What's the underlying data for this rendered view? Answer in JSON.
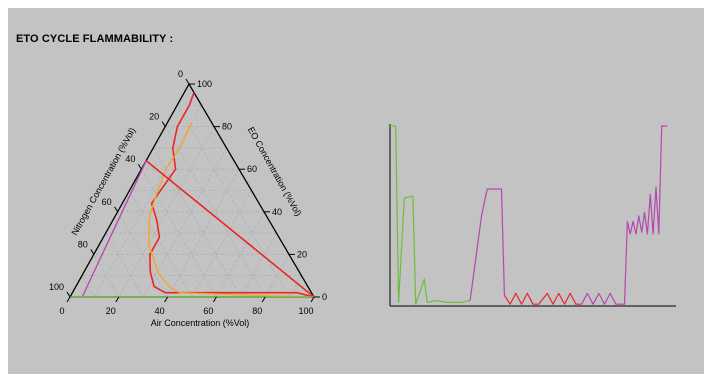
{
  "title": "ETO CYCLE FLAMMABILITY :",
  "colors": {
    "background": "#c3c3c3",
    "grid": "#aaaaaa",
    "red": "#e8262a",
    "orange": "#f5a623",
    "purple": "#b447b0",
    "green": "#6abf3a"
  },
  "chart_data": [
    {
      "type": "ternary",
      "title": "ETO CYCLE FLAMMABILITY :",
      "axes": {
        "bottom": {
          "label": "Air Concentration (%Vol)",
          "ticks": [
            "0",
            "20",
            "40",
            "60",
            "80",
            "100"
          ]
        },
        "right": {
          "label": "EO Concentration (%Vol)",
          "ticks": [
            "0",
            "20",
            "40",
            "60",
            "80",
            "100"
          ]
        },
        "left": {
          "label": "Nitrogen Concentration (%Vol)",
          "ticks": [
            "0",
            "20",
            "40",
            "60",
            "80",
            "100"
          ]
        }
      },
      "grid": true,
      "series": [
        {
          "color": "red",
          "points": [
            [
              4,
              96,
              0
            ],
            [
              5,
              90,
              5
            ],
            [
              5,
              80,
              15
            ],
            [
              8,
              70,
              22
            ],
            [
              14,
              60,
              26
            ],
            [
              13,
              52,
              35
            ],
            [
              12,
              44,
              44
            ],
            [
              18,
              36,
              46
            ],
            [
              23,
              28,
              49
            ],
            [
              23,
              20,
              57
            ],
            [
              27,
              12,
              61
            ],
            [
              32,
              5,
              63
            ],
            [
              38,
              2,
              60
            ],
            [
              52,
              2,
              46
            ],
            [
              72,
              2,
              26
            ],
            [
              92,
              2,
              6
            ],
            [
              100,
              0,
              0
            ]
          ]
        },
        {
          "color": "orange",
          "points": [
            [
              10,
              82,
              8
            ],
            [
              11,
              70,
              19
            ],
            [
              10,
              60,
              30
            ],
            [
              12,
              48,
              40
            ],
            [
              14,
              38,
              48
            ],
            [
              20,
              25,
              55
            ],
            [
              30,
              12,
              58
            ],
            [
              38,
              5,
              57
            ],
            [
              44,
              2,
              54
            ],
            [
              70,
              1,
              29
            ],
            [
              100,
              0,
              0
            ]
          ]
        },
        {
          "color": "red",
          "points": [
            [
              0,
              64,
              36
            ],
            [
              100,
              0,
              0
            ]
          ]
        },
        {
          "color": "purple",
          "points": [
            [
              5,
              0,
              95
            ],
            [
              0,
              64,
              36
            ]
          ]
        },
        {
          "color": "green",
          "points": [
            [
              0,
              0,
              100
            ],
            [
              100,
              0,
              0
            ]
          ]
        }
      ]
    },
    {
      "type": "line",
      "grid": false,
      "series": [
        {
          "color": "green",
          "points": [
            [
              0,
              100
            ],
            [
              2,
              100
            ],
            [
              3,
              2
            ],
            [
              5,
              60
            ],
            [
              8,
              61
            ],
            [
              9,
              1
            ],
            [
              12,
              15
            ],
            [
              13,
              2
            ],
            [
              16,
              3
            ],
            [
              20,
              2
            ],
            [
              25,
              2
            ],
            [
              28,
              3
            ]
          ]
        },
        {
          "color": "purple",
          "points": [
            [
              28,
              3
            ],
            [
              32,
              50
            ],
            [
              34,
              65
            ],
            [
              39,
              65
            ],
            [
              40,
              6
            ]
          ]
        },
        {
          "color": "red",
          "points": [
            [
              40,
              6
            ],
            [
              42,
              1
            ],
            [
              44,
              7
            ],
            [
              46,
              1
            ],
            [
              48,
              7
            ],
            [
              50,
              1
            ],
            [
              52,
              1
            ],
            [
              55,
              7
            ],
            [
              57,
              1
            ],
            [
              59,
              7
            ],
            [
              61,
              1
            ],
            [
              63,
              7
            ],
            [
              65,
              1
            ],
            [
              67,
              1
            ]
          ]
        },
        {
          "color": "purple",
          "points": [
            [
              67,
              1
            ],
            [
              69,
              7
            ],
            [
              71,
              1
            ],
            [
              73,
              7
            ],
            [
              75,
              1
            ],
            [
              77,
              7
            ],
            [
              79,
              1
            ],
            [
              82,
              1
            ],
            [
              83,
              47
            ],
            [
              84,
              40
            ],
            [
              85,
              47
            ],
            [
              86,
              40
            ],
            [
              87,
              50
            ],
            [
              88,
              41
            ],
            [
              89,
              52
            ],
            [
              90,
              40
            ],
            [
              91,
              62
            ],
            [
              92,
              40
            ],
            [
              93,
              66
            ],
            [
              94,
              40
            ],
            [
              95,
              100
            ],
            [
              97,
              100
            ]
          ]
        }
      ],
      "xlim": [
        0,
        100
      ],
      "ylim": [
        0,
        100
      ]
    }
  ]
}
